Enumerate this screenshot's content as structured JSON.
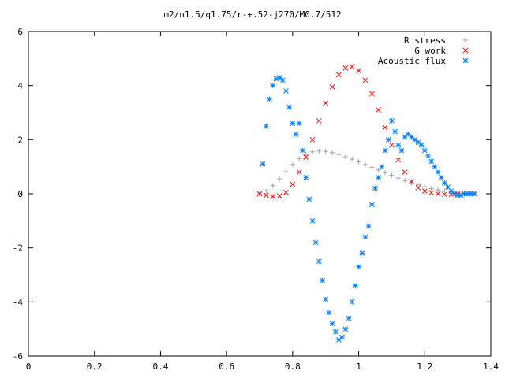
{
  "chart_data": {
    "type": "scatter",
    "title": "m2/n1.5/q1.75/r-+.52-j270/M0.7/512",
    "xlabel": "",
    "ylabel": "",
    "xlim": [
      0,
      1.4
    ],
    "ylim": [
      -6,
      6
    ],
    "xticks": [
      "0",
      "0.2",
      "0.4",
      "0.6",
      "0.8",
      "1",
      "1.2",
      "1.4"
    ],
    "yticks": [
      "-6",
      "-4",
      "-2",
      "0",
      "2",
      "4",
      "6"
    ],
    "grid": false,
    "legend_position": "top-right",
    "series": [
      {
        "name": "R stress",
        "marker": "plus",
        "color": "#a0a0a0",
        "x": [
          0.7,
          0.72,
          0.74,
          0.76,
          0.78,
          0.8,
          0.82,
          0.84,
          0.86,
          0.88,
          0.9,
          0.92,
          0.94,
          0.96,
          0.98,
          1.0,
          1.02,
          1.04,
          1.06,
          1.08,
          1.1,
          1.12,
          1.14,
          1.16,
          1.18,
          1.2,
          1.22,
          1.24,
          1.26,
          1.28,
          1.3,
          1.32,
          1.34,
          1.35
        ],
        "y": [
          0.0,
          0.1,
          0.3,
          0.55,
          0.82,
          1.08,
          1.3,
          1.45,
          1.55,
          1.58,
          1.57,
          1.52,
          1.45,
          1.37,
          1.28,
          1.18,
          1.08,
          0.98,
          0.88,
          0.78,
          0.68,
          0.58,
          0.49,
          0.41,
          0.33,
          0.26,
          0.19,
          0.14,
          0.1,
          0.07,
          0.04,
          0.02,
          0.01,
          0.0
        ]
      },
      {
        "name": "G work",
        "marker": "cross",
        "color": "#ff0000",
        "x": [
          0.7,
          0.72,
          0.74,
          0.76,
          0.78,
          0.8,
          0.82,
          0.84,
          0.86,
          0.88,
          0.9,
          0.92,
          0.94,
          0.96,
          0.98,
          1.0,
          1.02,
          1.04,
          1.06,
          1.08,
          1.1,
          1.12,
          1.14,
          1.16,
          1.18,
          1.2,
          1.22,
          1.24,
          1.26,
          1.28,
          1.3,
          1.32,
          1.34,
          1.35
        ],
        "y": [
          0.0,
          -0.05,
          -0.1,
          -0.08,
          0.05,
          0.35,
          0.8,
          1.35,
          2.0,
          2.7,
          3.35,
          3.95,
          4.4,
          4.65,
          4.7,
          4.55,
          4.2,
          3.7,
          3.1,
          2.45,
          1.8,
          1.25,
          0.8,
          0.45,
          0.22,
          0.1,
          0.04,
          0.0,
          -0.02,
          -0.02,
          -0.01,
          0.0,
          0.0,
          0.0
        ]
      },
      {
        "name": "Acoustic flux",
        "marker": "star",
        "color": "#0080ff",
        "x": [
          0.71,
          0.72,
          0.73,
          0.74,
          0.75,
          0.76,
          0.77,
          0.78,
          0.79,
          0.8,
          0.81,
          0.82,
          0.83,
          0.84,
          0.85,
          0.86,
          0.87,
          0.88,
          0.89,
          0.9,
          0.91,
          0.92,
          0.93,
          0.94,
          0.95,
          0.96,
          0.97,
          0.98,
          0.99,
          1.0,
          1.01,
          1.02,
          1.03,
          1.04,
          1.05,
          1.06,
          1.07,
          1.08,
          1.09,
          1.1,
          1.11,
          1.12,
          1.13,
          1.14,
          1.15,
          1.16,
          1.17,
          1.18,
          1.19,
          1.2,
          1.21,
          1.22,
          1.23,
          1.24,
          1.25,
          1.26,
          1.27,
          1.28,
          1.29,
          1.3,
          1.31,
          1.32,
          1.33,
          1.34,
          1.35
        ],
        "y": [
          1.1,
          2.5,
          3.5,
          4.0,
          4.25,
          4.3,
          4.2,
          3.8,
          3.2,
          2.6,
          2.2,
          2.6,
          1.6,
          0.6,
          -0.2,
          -1.0,
          -1.8,
          -2.5,
          -3.2,
          -3.9,
          -4.4,
          -4.8,
          -5.1,
          -5.4,
          -5.3,
          -5.0,
          -4.6,
          -4.0,
          -3.4,
          -2.7,
          -2.2,
          -1.6,
          -1.2,
          -0.4,
          0.2,
          0.6,
          1.0,
          1.6,
          2.0,
          2.7,
          2.3,
          1.8,
          1.6,
          2.1,
          2.2,
          2.1,
          2.0,
          1.9,
          1.8,
          1.6,
          1.4,
          1.2,
          1.0,
          0.8,
          0.6,
          0.4,
          0.25,
          0.1,
          0.0,
          -0.05,
          -0.05,
          0.0,
          0.0,
          0.0,
          0.0
        ]
      }
    ]
  }
}
